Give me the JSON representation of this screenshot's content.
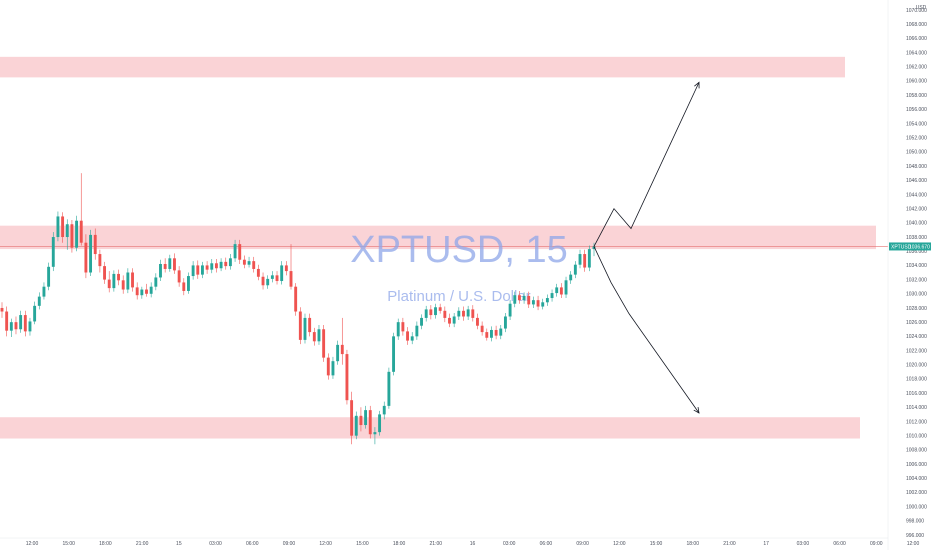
{
  "chart_data": {
    "type": "candlestick",
    "symbol_title": "XPTUSD, 15",
    "subtitle": "Platinum / U.S. Dollar",
    "currency": "USD",
    "ylim": [
      996,
      1070
    ],
    "y_ticks": [
      "1070.000",
      "1068.000",
      "1066.000",
      "1064.000",
      "1062.000",
      "1060.000",
      "1058.000",
      "1056.000",
      "1054.000",
      "1052.000",
      "1050.000",
      "1048.000",
      "1046.000",
      "1044.000",
      "1042.000",
      "1040.000",
      "1038.000",
      "1036.000",
      "1034.000",
      "1032.000",
      "1030.000",
      "1028.000",
      "1026.000",
      "1024.000",
      "1022.000",
      "1020.000",
      "1018.000",
      "1016.000",
      "1014.000",
      "1012.000",
      "1010.000",
      "1008.000",
      "1006.000",
      "1004.000",
      "1002.000",
      "1000.000",
      "998.000",
      "996.000"
    ],
    "x_ticks": [
      "12:00",
      "15:00",
      "18:00",
      "21:00",
      "15",
      "03:00",
      "06:00",
      "09:00",
      "12:00",
      "15:00",
      "18:00",
      "21:00",
      "16",
      "03:00",
      "06:00",
      "09:00",
      "12:00",
      "15:00",
      "18:00",
      "21:00",
      "17",
      "03:00",
      "06:00",
      "09:00",
      "12:00"
    ],
    "current_price": {
      "symbol": "XPTUSD",
      "label": "1036.670",
      "value": 1036.67
    },
    "zones": [
      {
        "y_top": 1063.4,
        "y_bottom": 1060.5,
        "color": "#f8c4c8"
      },
      {
        "y_top": 1039.6,
        "y_bottom": 1036.3,
        "color": "#f8c4c8"
      },
      {
        "y_top": 1012.6,
        "y_bottom": 1009.6,
        "color": "#f8c4c8"
      }
    ],
    "horizontal_line": {
      "y": 1036.67,
      "color": "#e57373"
    },
    "candles": [
      {
        "o": 1028.0,
        "h": 1028.8,
        "l": 1026.6,
        "c": 1027.5
      },
      {
        "o": 1027.5,
        "h": 1028.2,
        "l": 1024.0,
        "c": 1024.8
      },
      {
        "o": 1024.8,
        "h": 1026.5,
        "l": 1023.9,
        "c": 1026.0
      },
      {
        "o": 1026.0,
        "h": 1026.8,
        "l": 1024.3,
        "c": 1025.0
      },
      {
        "o": 1025.0,
        "h": 1027.6,
        "l": 1024.5,
        "c": 1027.0
      },
      {
        "o": 1027.0,
        "h": 1027.6,
        "l": 1024.0,
        "c": 1024.7
      },
      {
        "o": 1024.7,
        "h": 1026.6,
        "l": 1024.1,
        "c": 1026.1
      },
      {
        "o": 1026.1,
        "h": 1028.9,
        "l": 1025.7,
        "c": 1028.3
      },
      {
        "o": 1028.3,
        "h": 1030.2,
        "l": 1027.8,
        "c": 1029.6
      },
      {
        "o": 1029.6,
        "h": 1031.6,
        "l": 1029.2,
        "c": 1031.0
      },
      {
        "o": 1031.0,
        "h": 1034.4,
        "l": 1030.5,
        "c": 1033.8
      },
      {
        "o": 1033.8,
        "h": 1038.7,
        "l": 1033.2,
        "c": 1038.0
      },
      {
        "o": 1038.0,
        "h": 1041.6,
        "l": 1037.4,
        "c": 1040.9
      },
      {
        "o": 1040.9,
        "h": 1041.5,
        "l": 1037.2,
        "c": 1038.0
      },
      {
        "o": 1038.0,
        "h": 1040.5,
        "l": 1036.2,
        "c": 1039.8
      },
      {
        "o": 1039.8,
        "h": 1040.4,
        "l": 1035.8,
        "c": 1036.5
      },
      {
        "o": 1036.5,
        "h": 1041.0,
        "l": 1036.0,
        "c": 1040.3
      },
      {
        "o": 1040.3,
        "h": 1047.0,
        "l": 1036.8,
        "c": 1037.2
      },
      {
        "o": 1037.2,
        "h": 1038.4,
        "l": 1032.2,
        "c": 1033.0
      },
      {
        "o": 1033.0,
        "h": 1039.0,
        "l": 1032.5,
        "c": 1038.3
      },
      {
        "o": 1038.3,
        "h": 1039.2,
        "l": 1034.8,
        "c": 1035.6
      },
      {
        "o": 1035.6,
        "h": 1036.2,
        "l": 1033.0,
        "c": 1033.9
      },
      {
        "o": 1033.9,
        "h": 1034.5,
        "l": 1031.4,
        "c": 1032.0
      },
      {
        "o": 1032.0,
        "h": 1033.2,
        "l": 1030.2,
        "c": 1030.8
      },
      {
        "o": 1030.8,
        "h": 1033.3,
        "l": 1030.3,
        "c": 1032.8
      },
      {
        "o": 1032.8,
        "h": 1033.4,
        "l": 1031.2,
        "c": 1031.9
      },
      {
        "o": 1031.9,
        "h": 1032.6,
        "l": 1030.0,
        "c": 1030.6
      },
      {
        "o": 1030.6,
        "h": 1033.6,
        "l": 1030.1,
        "c": 1033.0
      },
      {
        "o": 1033.0,
        "h": 1033.6,
        "l": 1030.3,
        "c": 1030.9
      },
      {
        "o": 1030.9,
        "h": 1031.6,
        "l": 1029.2,
        "c": 1029.8
      },
      {
        "o": 1029.8,
        "h": 1031.0,
        "l": 1029.3,
        "c": 1030.6
      },
      {
        "o": 1030.6,
        "h": 1031.4,
        "l": 1029.6,
        "c": 1030.0
      },
      {
        "o": 1030.0,
        "h": 1031.6,
        "l": 1029.5,
        "c": 1031.0
      },
      {
        "o": 1031.0,
        "h": 1032.9,
        "l": 1030.5,
        "c": 1032.3
      },
      {
        "o": 1032.3,
        "h": 1034.8,
        "l": 1031.8,
        "c": 1034.2
      },
      {
        "o": 1034.2,
        "h": 1035.0,
        "l": 1033.0,
        "c": 1033.5
      },
      {
        "o": 1033.5,
        "h": 1035.5,
        "l": 1033.1,
        "c": 1035.0
      },
      {
        "o": 1035.0,
        "h": 1035.7,
        "l": 1032.8,
        "c": 1033.3
      },
      {
        "o": 1033.3,
        "h": 1033.9,
        "l": 1031.0,
        "c": 1031.6
      },
      {
        "o": 1031.6,
        "h": 1032.2,
        "l": 1029.8,
        "c": 1030.4
      },
      {
        "o": 1030.4,
        "h": 1033.0,
        "l": 1030.0,
        "c": 1032.5
      },
      {
        "o": 1032.5,
        "h": 1034.6,
        "l": 1032.0,
        "c": 1034.0
      },
      {
        "o": 1034.0,
        "h": 1034.7,
        "l": 1032.1,
        "c": 1032.7
      },
      {
        "o": 1032.7,
        "h": 1034.5,
        "l": 1032.2,
        "c": 1034.0
      },
      {
        "o": 1034.0,
        "h": 1034.6,
        "l": 1032.8,
        "c": 1033.4
      },
      {
        "o": 1033.4,
        "h": 1034.9,
        "l": 1032.9,
        "c": 1034.3
      },
      {
        "o": 1034.3,
        "h": 1034.9,
        "l": 1033.0,
        "c": 1033.6
      },
      {
        "o": 1033.6,
        "h": 1035.0,
        "l": 1033.2,
        "c": 1034.5
      },
      {
        "o": 1034.5,
        "h": 1035.1,
        "l": 1033.4,
        "c": 1033.9
      },
      {
        "o": 1033.9,
        "h": 1035.6,
        "l": 1033.4,
        "c": 1035.0
      },
      {
        "o": 1035.0,
        "h": 1037.6,
        "l": 1034.5,
        "c": 1037.0
      },
      {
        "o": 1037.0,
        "h": 1037.6,
        "l": 1034.2,
        "c": 1034.8
      },
      {
        "o": 1034.8,
        "h": 1035.4,
        "l": 1033.6,
        "c": 1034.1
      },
      {
        "o": 1034.1,
        "h": 1035.2,
        "l": 1033.7,
        "c": 1034.6
      },
      {
        "o": 1034.6,
        "h": 1035.2,
        "l": 1033.0,
        "c": 1033.5
      },
      {
        "o": 1033.5,
        "h": 1034.1,
        "l": 1031.9,
        "c": 1032.4
      },
      {
        "o": 1032.4,
        "h": 1033.0,
        "l": 1030.6,
        "c": 1031.2
      },
      {
        "o": 1031.2,
        "h": 1032.6,
        "l": 1030.7,
        "c": 1032.1
      },
      {
        "o": 1032.1,
        "h": 1033.2,
        "l": 1031.6,
        "c": 1032.6
      },
      {
        "o": 1032.6,
        "h": 1033.2,
        "l": 1031.3,
        "c": 1031.8
      },
      {
        "o": 1031.8,
        "h": 1034.6,
        "l": 1031.3,
        "c": 1034.0
      },
      {
        "o": 1034.0,
        "h": 1034.6,
        "l": 1032.6,
        "c": 1033.2
      },
      {
        "o": 1033.2,
        "h": 1037.0,
        "l": 1030.6,
        "c": 1031.0
      },
      {
        "o": 1031.0,
        "h": 1031.5,
        "l": 1026.9,
        "c": 1027.5
      },
      {
        "o": 1027.5,
        "h": 1028.1,
        "l": 1022.9,
        "c": 1023.5
      },
      {
        "o": 1023.5,
        "h": 1027.2,
        "l": 1023.0,
        "c": 1026.6
      },
      {
        "o": 1026.6,
        "h": 1027.2,
        "l": 1024.0,
        "c": 1024.6
      },
      {
        "o": 1024.6,
        "h": 1025.2,
        "l": 1022.7,
        "c": 1023.3
      },
      {
        "o": 1023.3,
        "h": 1025.6,
        "l": 1022.8,
        "c": 1025.0
      },
      {
        "o": 1025.0,
        "h": 1025.6,
        "l": 1020.4,
        "c": 1021.0
      },
      {
        "o": 1021.0,
        "h": 1021.6,
        "l": 1017.9,
        "c": 1018.5
      },
      {
        "o": 1018.5,
        "h": 1021.1,
        "l": 1018.0,
        "c": 1020.5
      },
      {
        "o": 1020.5,
        "h": 1023.4,
        "l": 1020.0,
        "c": 1022.8
      },
      {
        "o": 1022.8,
        "h": 1026.6,
        "l": 1020.0,
        "c": 1021.5
      },
      {
        "o": 1021.5,
        "h": 1022.1,
        "l": 1014.4,
        "c": 1015.0
      },
      {
        "o": 1015.0,
        "h": 1016.2,
        "l": 1008.8,
        "c": 1010.0
      },
      {
        "o": 1010.0,
        "h": 1013.4,
        "l": 1009.5,
        "c": 1012.8
      },
      {
        "o": 1012.8,
        "h": 1014.0,
        "l": 1010.6,
        "c": 1011.5
      },
      {
        "o": 1011.5,
        "h": 1014.2,
        "l": 1011.0,
        "c": 1013.6
      },
      {
        "o": 1013.6,
        "h": 1014.2,
        "l": 1009.6,
        "c": 1010.2
      },
      {
        "o": 1010.2,
        "h": 1011.2,
        "l": 1008.8,
        "c": 1010.5
      },
      {
        "o": 1010.5,
        "h": 1013.5,
        "l": 1010.0,
        "c": 1013.0
      },
      {
        "o": 1013.0,
        "h": 1014.8,
        "l": 1012.3,
        "c": 1014.2
      },
      {
        "o": 1014.2,
        "h": 1019.6,
        "l": 1013.8,
        "c": 1019.0
      },
      {
        "o": 1019.0,
        "h": 1024.5,
        "l": 1018.5,
        "c": 1024.0
      },
      {
        "o": 1024.0,
        "h": 1026.5,
        "l": 1023.5,
        "c": 1026.0
      },
      {
        "o": 1026.0,
        "h": 1026.6,
        "l": 1024.1,
        "c": 1024.7
      },
      {
        "o": 1024.7,
        "h": 1025.3,
        "l": 1022.8,
        "c": 1023.4
      },
      {
        "o": 1023.4,
        "h": 1024.6,
        "l": 1022.9,
        "c": 1024.0
      },
      {
        "o": 1024.0,
        "h": 1026.1,
        "l": 1023.5,
        "c": 1025.5
      },
      {
        "o": 1025.5,
        "h": 1027.1,
        "l": 1025.0,
        "c": 1026.6
      },
      {
        "o": 1026.6,
        "h": 1028.3,
        "l": 1026.1,
        "c": 1027.8
      },
      {
        "o": 1027.8,
        "h": 1028.4,
        "l": 1026.4,
        "c": 1027.0
      },
      {
        "o": 1027.0,
        "h": 1028.6,
        "l": 1026.5,
        "c": 1028.1
      },
      {
        "o": 1028.1,
        "h": 1028.6,
        "l": 1027.2,
        "c": 1027.6
      },
      {
        "o": 1027.6,
        "h": 1028.2,
        "l": 1026.0,
        "c": 1026.6
      },
      {
        "o": 1026.6,
        "h": 1027.2,
        "l": 1025.3,
        "c": 1025.8
      },
      {
        "o": 1025.8,
        "h": 1027.3,
        "l": 1025.3,
        "c": 1026.8
      },
      {
        "o": 1026.8,
        "h": 1028.1,
        "l": 1026.3,
        "c": 1027.6
      },
      {
        "o": 1027.6,
        "h": 1028.2,
        "l": 1026.2,
        "c": 1026.8
      },
      {
        "o": 1026.8,
        "h": 1028.3,
        "l": 1026.3,
        "c": 1027.8
      },
      {
        "o": 1027.8,
        "h": 1028.4,
        "l": 1026.1,
        "c": 1026.6
      },
      {
        "o": 1026.6,
        "h": 1027.2,
        "l": 1025.0,
        "c": 1025.5
      },
      {
        "o": 1025.5,
        "h": 1026.1,
        "l": 1024.1,
        "c": 1024.6
      },
      {
        "o": 1024.6,
        "h": 1025.1,
        "l": 1023.4,
        "c": 1023.8
      },
      {
        "o": 1023.8,
        "h": 1025.4,
        "l": 1023.3,
        "c": 1024.9
      },
      {
        "o": 1024.9,
        "h": 1025.5,
        "l": 1023.6,
        "c": 1024.1
      },
      {
        "o": 1024.1,
        "h": 1025.6,
        "l": 1023.6,
        "c": 1025.1
      },
      {
        "o": 1025.1,
        "h": 1027.3,
        "l": 1024.6,
        "c": 1026.8
      },
      {
        "o": 1026.8,
        "h": 1029.1,
        "l": 1026.3,
        "c": 1028.6
      },
      {
        "o": 1028.6,
        "h": 1030.3,
        "l": 1028.1,
        "c": 1029.8
      },
      {
        "o": 1029.8,
        "h": 1030.4,
        "l": 1028.6,
        "c": 1029.1
      },
      {
        "o": 1029.1,
        "h": 1030.2,
        "l": 1028.6,
        "c": 1029.7
      },
      {
        "o": 1029.7,
        "h": 1030.3,
        "l": 1028.0,
        "c": 1028.5
      },
      {
        "o": 1028.5,
        "h": 1029.6,
        "l": 1028.0,
        "c": 1029.1
      },
      {
        "o": 1029.1,
        "h": 1029.7,
        "l": 1027.7,
        "c": 1028.2
      },
      {
        "o": 1028.2,
        "h": 1029.3,
        "l": 1027.8,
        "c": 1028.8
      },
      {
        "o": 1028.8,
        "h": 1029.9,
        "l": 1028.3,
        "c": 1029.4
      },
      {
        "o": 1029.4,
        "h": 1030.6,
        "l": 1028.9,
        "c": 1030.1
      },
      {
        "o": 1030.1,
        "h": 1031.4,
        "l": 1029.6,
        "c": 1030.9
      },
      {
        "o": 1030.9,
        "h": 1031.5,
        "l": 1029.4,
        "c": 1029.9
      },
      {
        "o": 1029.9,
        "h": 1032.4,
        "l": 1029.4,
        "c": 1031.9
      },
      {
        "o": 1031.9,
        "h": 1033.2,
        "l": 1031.4,
        "c": 1032.7
      },
      {
        "o": 1032.7,
        "h": 1034.6,
        "l": 1032.2,
        "c": 1034.1
      },
      {
        "o": 1034.1,
        "h": 1036.2,
        "l": 1033.6,
        "c": 1035.6
      },
      {
        "o": 1035.6,
        "h": 1036.2,
        "l": 1033.1,
        "c": 1033.7
      },
      {
        "o": 1033.7,
        "h": 1036.8,
        "l": 1033.2,
        "c": 1036.3
      },
      {
        "o": 1036.3,
        "h": 1037.2,
        "l": 1035.3,
        "c": 1036.67
      }
    ],
    "up_color": "#26a69a",
    "down_color": "#ef5350",
    "projection": {
      "up_path": [
        [
          1036.67
        ],
        [
          1042.0
        ],
        [
          1039.2
        ],
        [
          1059.8
        ]
      ],
      "down_path": [
        [
          1036.67
        ],
        [
          1031.6
        ],
        [
          1027.2
        ],
        [
          1013.2
        ]
      ]
    }
  }
}
